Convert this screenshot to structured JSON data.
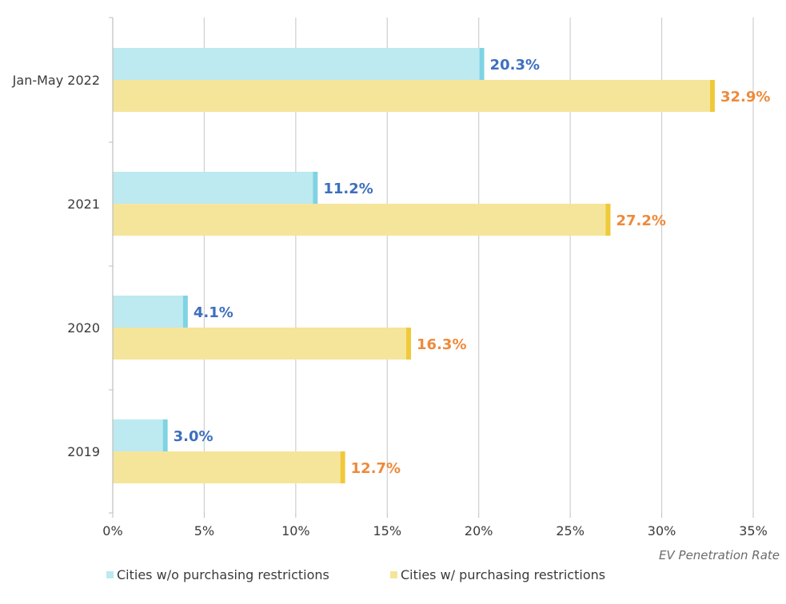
{
  "chart_data": {
    "type": "bar",
    "orientation": "horizontal",
    "categories": [
      "Jan-May 2022",
      "2021",
      "2020",
      "2019"
    ],
    "series": [
      {
        "name": "Cities w/o purchasing restrictions",
        "values": [
          20.3,
          11.2,
          4.1,
          3.0
        ],
        "labels": [
          "20.3%",
          "11.2%",
          "4.1%",
          "3.0%"
        ],
        "color": "#bde9f0",
        "accent_color": "#7fd3e3",
        "label_color": "#3d6fbf"
      },
      {
        "name": "Cities w/ purchasing restrictions",
        "values": [
          32.9,
          27.2,
          16.3,
          12.7
        ],
        "labels": [
          "32.9%",
          "27.2%",
          "16.3%",
          "12.7%"
        ],
        "color": "#f5e59a",
        "accent_color": "#f0c93a",
        "label_color": "#ee8a3a"
      }
    ],
    "xlabel": "EV Penetration Rate",
    "ylabel": "",
    "xlim": [
      0,
      35
    ],
    "xticks": [
      "0%",
      "5%",
      "10%",
      "15%",
      "20%",
      "25%",
      "30%",
      "35%"
    ],
    "grid": "vertical",
    "legend_position": "bottom"
  }
}
